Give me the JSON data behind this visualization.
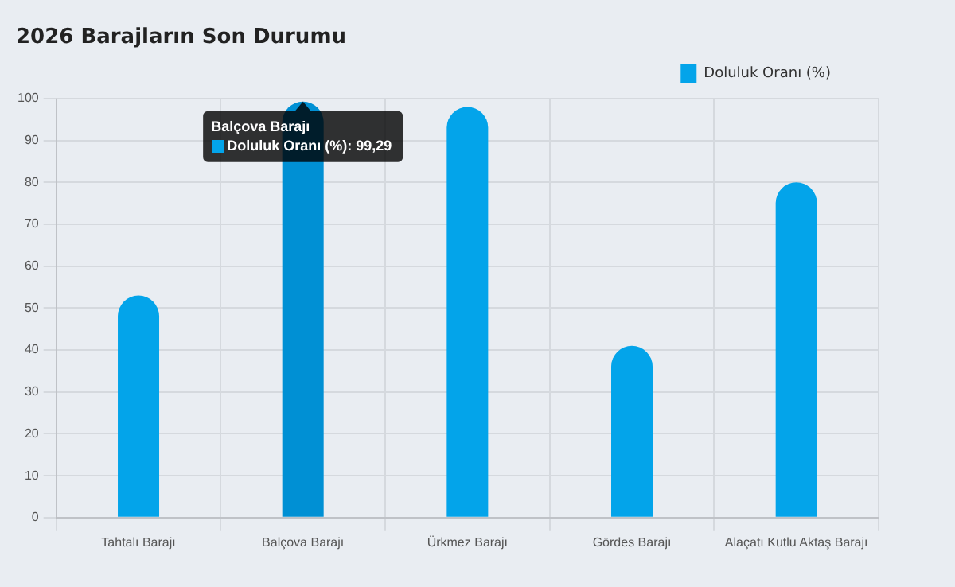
{
  "chart_data": {
    "type": "bar",
    "title": "2026 Barajların Son Durumu",
    "categories": [
      "Tahtalı Barajı",
      "Balçova Barajı",
      "Ürkmez Barajı",
      "Gördes Barajı",
      "Alaçatı Kutlu Aktaş Barajı"
    ],
    "series": [
      {
        "name": "Doluluk Oranı (%)",
        "color": "#03a4ea",
        "colors": [
          "#03a4ea",
          "#0090d4",
          "#03a4ea",
          "#03a4ea",
          "#03a4ea"
        ],
        "values": [
          53,
          99.29,
          98,
          41,
          80
        ]
      }
    ],
    "ylim": [
      0,
      100
    ],
    "yticks": [
      0,
      10,
      20,
      30,
      40,
      50,
      60,
      70,
      80,
      90,
      100
    ],
    "grid": true,
    "legend": "top right",
    "annotations": [
      {
        "text": "Balçova Barajı",
        "x": "Balçova Barajı",
        "y": 99.29
      },
      {
        "text": "Doluluk Oranı (%): 99,29",
        "x": "Balçova Barajı",
        "y": 99.29
      }
    ]
  }
}
